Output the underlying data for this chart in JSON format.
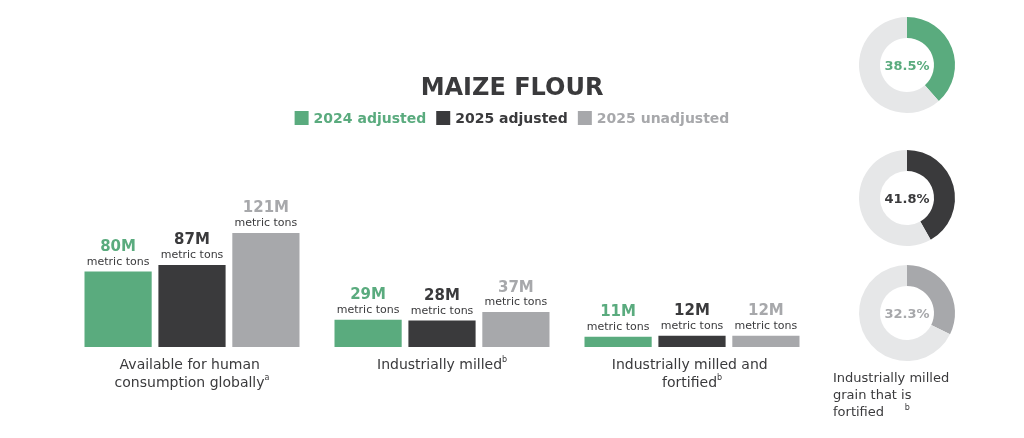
{
  "chart_data": [
    {
      "type": "bar",
      "title": "MAIZE FLOUR",
      "legend": "top",
      "categories": [
        "Available for human consumption globally$^{a}$",
        "Industrially milled$^{b}$",
        "Industrially milled and fortified$^{b}$"
      ],
      "series": [
        {
          "name": "2024 adjusted",
          "color": "#5aab7e",
          "values": [
            80,
            29,
            11
          ],
          "value_labels": [
            "80M metric tons",
            "29M metric tons",
            "11M metric tons"
          ]
        },
        {
          "name": "2025 adjusted",
          "color": "#3a3a3c",
          "values": [
            87,
            28,
            12
          ],
          "value_labels": [
            "87M metric tons",
            "28M metric tons",
            "12M metric tons"
          ]
        },
        {
          "name": "2025 unadjusted",
          "color": "#a7a8ab",
          "values": [
            121,
            37,
            12
          ],
          "value_labels": [
            "121M metric tons",
            "37M metric tons",
            "12M metric tons"
          ]
        }
      ]
    },
    {
      "type": "donut",
      "categories": [
        null,
        null
      ],
      "values": [
        38.5,
        61.5
      ],
      "colors": [
        "#5aab7e",
        "#e6e7e8"
      ],
      "value_labels": [
        "38.5%",
        null
      ]
    },
    {
      "type": "donut",
      "categories": [
        null,
        null
      ],
      "values": [
        41.8,
        58.2
      ],
      "colors": [
        "#3a3a3c",
        "#e6e7e8"
      ],
      "value_labels": [
        "41.8%",
        null
      ]
    },
    {
      "type": "donut",
      "categories": [
        null,
        null
      ],
      "values": [
        32.3,
        67.7
      ],
      "colors": [
        "#a7a8ab",
        "#e6e7e8"
      ],
      "value_labels": [
        "32.3%",
        null
      ],
      "annotations": [
        "Industrially milled grain that is fortified$^{b}$"
      ]
    }
  ]
}
